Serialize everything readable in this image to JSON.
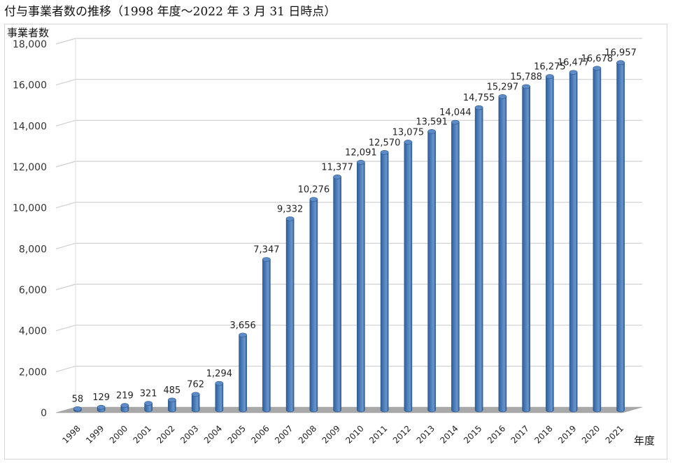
{
  "chart_data": {
    "type": "bar",
    "title": "付与事業者数の推移（1998 年度～2022 年 3 月 31 日時点）",
    "ylabel": "事業者数",
    "xlabel": "年度",
    "ylim": [
      0,
      18000
    ],
    "yticks": [
      0,
      2000,
      4000,
      6000,
      8000,
      10000,
      12000,
      14000,
      16000,
      18000
    ],
    "ytick_labels": [
      "0",
      "2,000",
      "4,000",
      "6,000",
      "8,000",
      "10,000",
      "12,000",
      "14,000",
      "16,000",
      "18,000"
    ],
    "grid": true,
    "bar_color": "#4f81bd",
    "categories": [
      "1998",
      "1999",
      "2000",
      "2001",
      "2002",
      "2003",
      "2004",
      "2005",
      "2006",
      "2007",
      "2008",
      "2009",
      "2010",
      "2011",
      "2012",
      "2013",
      "2014",
      "2015",
      "2016",
      "2017",
      "2018",
      "2019",
      "2020",
      "2021"
    ],
    "values": [
      58,
      129,
      219,
      321,
      485,
      762,
      1294,
      3656,
      7347,
      9332,
      10276,
      11377,
      12091,
      12570,
      13075,
      13591,
      14044,
      14755,
      15297,
      15788,
      16275,
      16477,
      16678,
      16957
    ],
    "data_labels": [
      "58",
      "129",
      "219",
      "321",
      "485",
      "762",
      "1,294",
      "3,656",
      "7,347",
      "9,332",
      "10,276",
      "11,377",
      "12,091",
      "12,570",
      "13,075",
      "13,591",
      "14,044",
      "14,755",
      "15,297",
      "15,788",
      "16,275",
      "16,477",
      "16,678",
      "16,957"
    ]
  }
}
